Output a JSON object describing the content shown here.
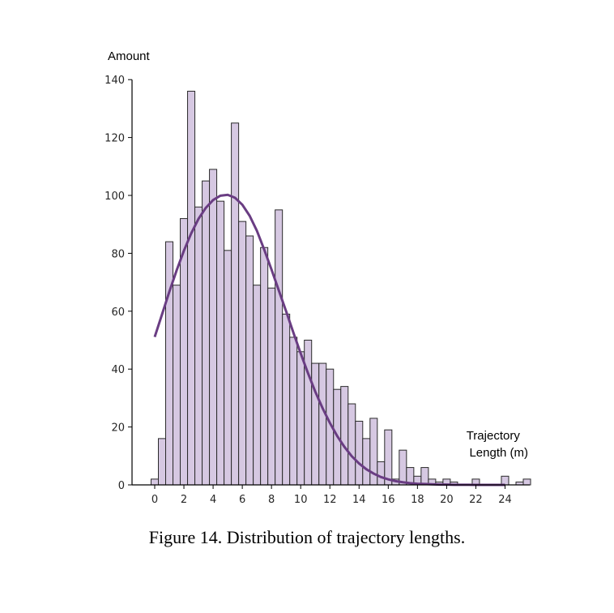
{
  "caption": "Figure 14. Distribution of trajectory lengths.",
  "colors": {
    "bar_fill": "#d6c8e2",
    "bar_edge": "#2a2a2a",
    "curve": "#6a3d83",
    "axis": "#000000"
  },
  "chart_data": {
    "type": "bar",
    "ylabel": "Amount",
    "xlabel": "Trajectory Length (m)",
    "xlabel_lines": [
      "Trajectory",
      "Length (m)"
    ],
    "xlim": [
      -1,
      25.5
    ],
    "ylim": [
      0,
      140
    ],
    "xticks": [
      0,
      2,
      4,
      6,
      8,
      10,
      12,
      14,
      16,
      18,
      20,
      22,
      24
    ],
    "yticks": [
      0,
      20,
      40,
      60,
      80,
      100,
      120,
      140
    ],
    "bin_width": 0.5,
    "bin_start": -0.25,
    "values": [
      2,
      16,
      84,
      69,
      92,
      136,
      96,
      105,
      109,
      98,
      81,
      125,
      91,
      86,
      69,
      82,
      68,
      95,
      59,
      51,
      46,
      50,
      42,
      42,
      40,
      33,
      34,
      28,
      22,
      16,
      23,
      8,
      19,
      2,
      12,
      6,
      3,
      6,
      2,
      1,
      2,
      1,
      0,
      0,
      2,
      0,
      0,
      0,
      3,
      0,
      1,
      2
    ],
    "grid": false,
    "fit_curve": {
      "type": "line",
      "x": [
        0,
        0.5,
        1,
        1.5,
        2,
        2.5,
        3,
        3.5,
        4,
        4.5,
        5,
        5.5,
        6,
        6.5,
        7,
        7.5,
        8,
        8.5,
        9,
        9.5,
        10,
        10.5,
        11,
        11.5,
        12,
        12.5,
        13,
        13.5,
        14,
        14.5,
        15,
        15.5,
        16,
        16.5,
        17,
        17.5,
        18,
        18.5,
        19,
        19.5,
        20,
        20.5,
        21,
        21.5,
        22,
        22.5,
        23,
        23.5,
        24
      ],
      "y": [
        51.1,
        58.9,
        66.7,
        74.1,
        80.9,
        86.9,
        91.9,
        95.7,
        98.4,
        99.9,
        100.2,
        99.2,
        96.8,
        93.0,
        87.8,
        81.3,
        74.4,
        67.2,
        60.0,
        52.6,
        45.4,
        38.6,
        32.2,
        26.5,
        21.4,
        16.9,
        13.1,
        9.9,
        7.4,
        5.4,
        3.9,
        2.7,
        1.9,
        1.3,
        0.9,
        0.6,
        0.4,
        0.3,
        0.2,
        0.1,
        0.1,
        0.05,
        0.03,
        0.02,
        0.01,
        0.01,
        0.0,
        0.0,
        0.0
      ]
    }
  }
}
